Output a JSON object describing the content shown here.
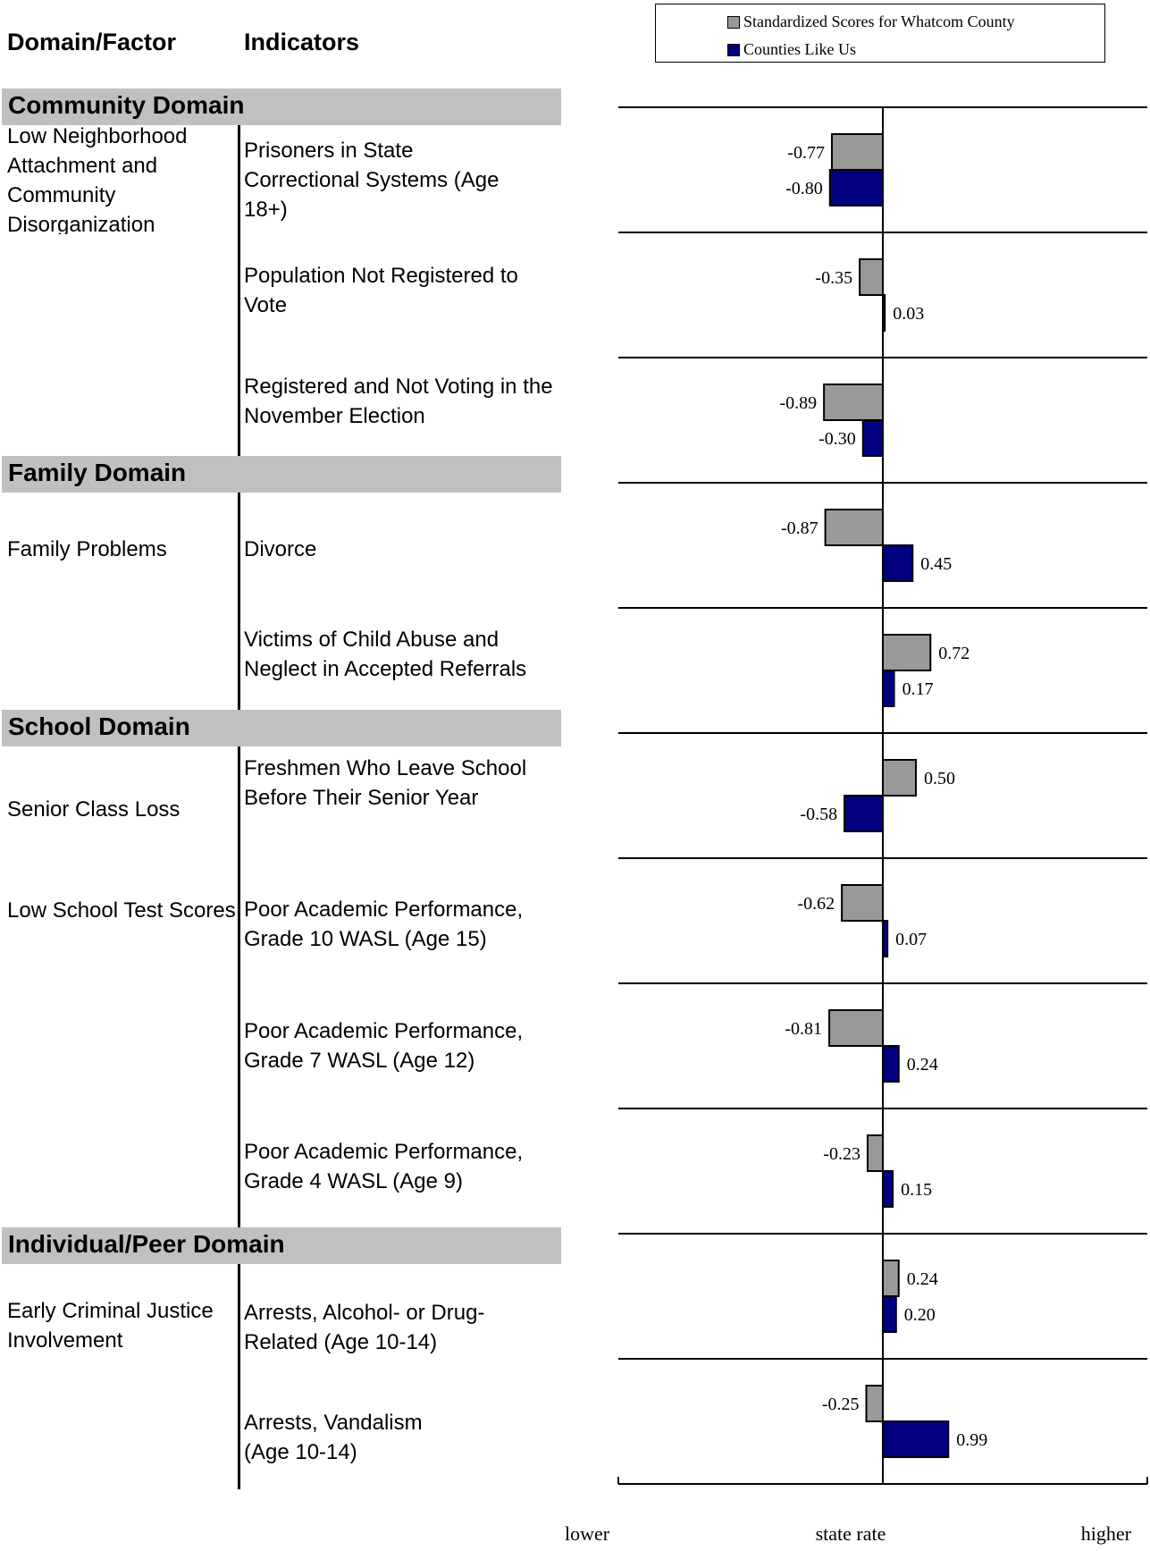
{
  "headers": {
    "domain_factor": "Domain/Factor",
    "indicators": "Indicators"
  },
  "legend": {
    "series1": "Standardized Scores for Whatcom County",
    "series2": "Counties Like Us"
  },
  "colors": {
    "series1": "#999999",
    "series2": "#000080",
    "band": "#c0c0c0"
  },
  "domains": [
    {
      "label": "Community Domain"
    },
    {
      "label": "Family Domain"
    },
    {
      "label": "School Domain"
    },
    {
      "label": "Individual/Peer Domain"
    }
  ],
  "factors": [
    {
      "label": "Low Neighborhood Attachment and Community Disorganization"
    },
    {
      "label": "Family Problems"
    },
    {
      "label": "Senior Class Loss"
    },
    {
      "label": "Low School Test Scores"
    },
    {
      "label": "Early Criminal Justice Involvement"
    }
  ],
  "indicators": [
    {
      "label": "Prisoners in State Correctional Systems (Age 18+)"
    },
    {
      "label": "Population Not Registered to Vote"
    },
    {
      "label": "Registered and Not Voting in the November Election"
    },
    {
      "label": "Divorce"
    },
    {
      "label": "Victims of Child Abuse and Neglect in Accepted Referrals"
    },
    {
      "label": "Freshmen Who Leave School Before Their Senior Year"
    },
    {
      "label": "Poor Academic Performance, Grade 10  WASL (Age 15)"
    },
    {
      "label": "Poor Academic Performance, Grade 7  WASL (Age 12)"
    },
    {
      "label": "Poor Academic Performance, Grade 4  WASL (Age 9)"
    },
    {
      "label": "Arrests, Alcohol- or Drug-Related (Age 10-14)"
    },
    {
      "label": "Arrests, Vandalism (Age 10-14)"
    }
  ],
  "chart_data": {
    "type": "bar",
    "orientation": "horizontal",
    "categories": [
      "Prisoners in State Correctional Systems (Age 18+)",
      "Population Not Registered to Vote",
      "Registered and Not Voting in the November Election",
      "Divorce",
      "Victims of Child Abuse and Neglect in Accepted Referrals",
      "Freshmen Who Leave School Before Their Senior Year",
      "Poor Academic Performance, Grade 10  WASL (Age 15)",
      "Poor Academic Performance, Grade 7  WASL (Age 12)",
      "Poor Academic Performance, Grade 4  WASL (Age 9)",
      "Arrests, Alcohol- or Drug-Related (Age 10-14)",
      "Arrests, Vandalism (Age 10-14)"
    ],
    "series": [
      {
        "name": "Standardized Scores for Whatcom County",
        "values": [
          -0.77,
          -0.35,
          -0.89,
          -0.87,
          0.72,
          0.5,
          -0.62,
          -0.81,
          -0.23,
          0.24,
          -0.25
        ],
        "labels": [
          "-0.77",
          "-0.35",
          "-0.89",
          "-0.87",
          "0.72",
          "0.50",
          "-0.62",
          "-0.81",
          "-0.23",
          "0.24",
          "-0.25"
        ]
      },
      {
        "name": "Counties Like Us",
        "values": [
          -0.8,
          0.03,
          -0.3,
          0.45,
          0.17,
          -0.58,
          0.07,
          0.24,
          0.15,
          0.2,
          0.99
        ],
        "labels": [
          "-0.80",
          "0.03",
          "-0.30",
          "0.45",
          "0.17",
          "-0.58",
          "0.07",
          "0.24",
          "0.15",
          "0.20",
          "0.99"
        ]
      }
    ],
    "xlim": [
      -4,
      4
    ],
    "axis_labels": {
      "low": "lower",
      "mid": "state rate",
      "high": "higher"
    },
    "grid": false,
    "legend_position": "top-right"
  }
}
